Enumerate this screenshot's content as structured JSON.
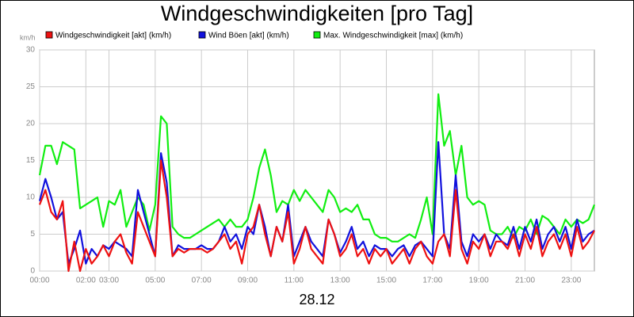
{
  "chart_data": {
    "type": "line",
    "title": "Windgeschwindigkeiten [pro Tag]",
    "ylabel": "km/h",
    "xlabel": "28.12",
    "x": [
      0,
      0.25,
      0.5,
      0.75,
      1,
      1.25,
      1.5,
      1.75,
      2,
      2.25,
      2.5,
      2.75,
      3,
      3.25,
      3.5,
      3.75,
      4,
      4.25,
      4.5,
      4.75,
      5,
      5.25,
      5.5,
      5.75,
      6,
      6.25,
      6.5,
      6.75,
      7,
      7.25,
      7.5,
      7.75,
      8,
      8.25,
      8.5,
      8.75,
      9,
      9.25,
      9.5,
      9.75,
      10,
      10.25,
      10.5,
      10.75,
      11,
      11.25,
      11.5,
      11.75,
      12,
      12.25,
      12.5,
      12.75,
      13,
      13.25,
      13.5,
      13.75,
      14,
      14.25,
      14.5,
      14.75,
      15,
      15.25,
      15.5,
      15.75,
      16,
      16.25,
      16.5,
      16.75,
      17,
      17.25,
      17.5,
      17.75,
      18,
      18.25,
      18.5,
      18.75,
      19,
      19.25,
      19.5,
      19.75,
      20,
      20.25,
      20.5,
      20.75,
      21,
      21.25,
      21.5,
      21.75,
      22,
      22.25,
      22.5,
      22.75,
      23,
      23.25,
      23.5,
      23.75,
      24
    ],
    "series": [
      {
        "name": "Windgeschwindigkeit [akt] (km/h)",
        "color": "#ee1111",
        "values": [
          9,
          11,
          8,
          7,
          9.5,
          0,
          4,
          0,
          3,
          1,
          2,
          3.5,
          2,
          4,
          5,
          2.5,
          1,
          8,
          6,
          4,
          2,
          15,
          10,
          2,
          3,
          2.5,
          3,
          3,
          3,
          2.5,
          3,
          4,
          5,
          3,
          4,
          1,
          5,
          6,
          9,
          5,
          2,
          6,
          4,
          8,
          1,
          3,
          6,
          3,
          2,
          1,
          7,
          5,
          2,
          3,
          5,
          2,
          3,
          1,
          3,
          2,
          3,
          1,
          2,
          3,
          1,
          3,
          4,
          2,
          1,
          4,
          5,
          2,
          11,
          3,
          1,
          4,
          3,
          5,
          2,
          4,
          4,
          3,
          5,
          2,
          5,
          3,
          6,
          2,
          4,
          5,
          3,
          5,
          2,
          6,
          3,
          4,
          5.5
        ]
      },
      {
        "name": "Wind Böen [akt] (km/h)",
        "color": "#1111dd",
        "values": [
          9.5,
          12.5,
          10,
          7,
          8,
          1,
          3,
          5.5,
          1,
          3,
          2,
          3.5,
          3,
          4,
          3.5,
          3,
          2,
          11,
          8,
          5,
          2,
          16,
          12,
          2,
          3.5,
          3,
          3,
          3,
          3.5,
          3,
          3,
          4,
          6,
          4,
          5,
          3,
          6,
          5,
          9,
          6,
          2,
          6,
          4,
          9,
          2,
          4,
          6,
          4,
          3,
          2,
          7,
          5,
          2.5,
          4,
          6,
          3,
          4,
          2,
          3.5,
          3,
          3,
          2,
          3,
          3.5,
          2,
          3.5,
          4,
          3,
          2,
          17.5,
          5,
          3,
          13,
          4,
          2,
          5,
          4,
          5,
          3,
          5,
          4,
          3.5,
          6,
          3,
          6,
          4,
          7,
          3,
          5,
          6,
          4,
          6,
          3,
          7,
          4,
          5,
          5.5
        ]
      },
      {
        "name": "Max. Windgeschwindigkeit [max] (km/h)",
        "color": "#11ee11",
        "values": [
          13,
          17,
          17,
          14.5,
          17.5,
          17,
          16.5,
          8.5,
          9,
          9.5,
          10,
          6,
          9.5,
          9,
          11,
          6,
          8,
          10,
          9,
          5.5,
          9,
          21,
          20,
          6,
          5,
          4.5,
          4.5,
          5,
          5.5,
          6,
          6.5,
          7,
          6,
          7,
          6,
          6,
          7,
          10,
          14,
          16.5,
          13,
          8,
          9.5,
          9,
          11,
          9.5,
          11,
          10,
          9,
          8,
          11,
          10,
          8,
          8.5,
          8,
          9,
          7,
          7,
          5,
          4.5,
          4.5,
          4,
          4,
          4.5,
          5,
          4.5,
          7,
          10,
          5,
          24,
          17,
          19,
          13,
          17,
          10,
          9,
          9.5,
          9,
          5.5,
          5,
          5,
          6,
          4.5,
          6,
          5.5,
          7,
          5,
          7.5,
          7,
          6,
          5,
          7,
          6,
          7,
          6.5,
          7,
          9
        ]
      }
    ],
    "xlim": [
      0,
      24
    ],
    "xticks": [
      {
        "value": 0,
        "label": "00:00"
      },
      {
        "value": 2,
        "label": "02:00"
      },
      {
        "value": 3,
        "label": "03:00"
      },
      {
        "value": 5,
        "label": "05:00"
      },
      {
        "value": 7,
        "label": "07:00"
      },
      {
        "value": 9,
        "label": "09:00"
      },
      {
        "value": 11,
        "label": "11:00"
      },
      {
        "value": 13,
        "label": "13:00"
      },
      {
        "value": 15,
        "label": "15:00"
      },
      {
        "value": 17,
        "label": "17:00"
      },
      {
        "value": 19,
        "label": "19:00"
      },
      {
        "value": 21,
        "label": "21:00"
      },
      {
        "value": 23,
        "label": "23:00"
      }
    ],
    "ylim": [
      0,
      30
    ],
    "yticks": [
      0,
      5,
      10,
      15,
      20,
      25,
      30
    ],
    "grid": true
  }
}
